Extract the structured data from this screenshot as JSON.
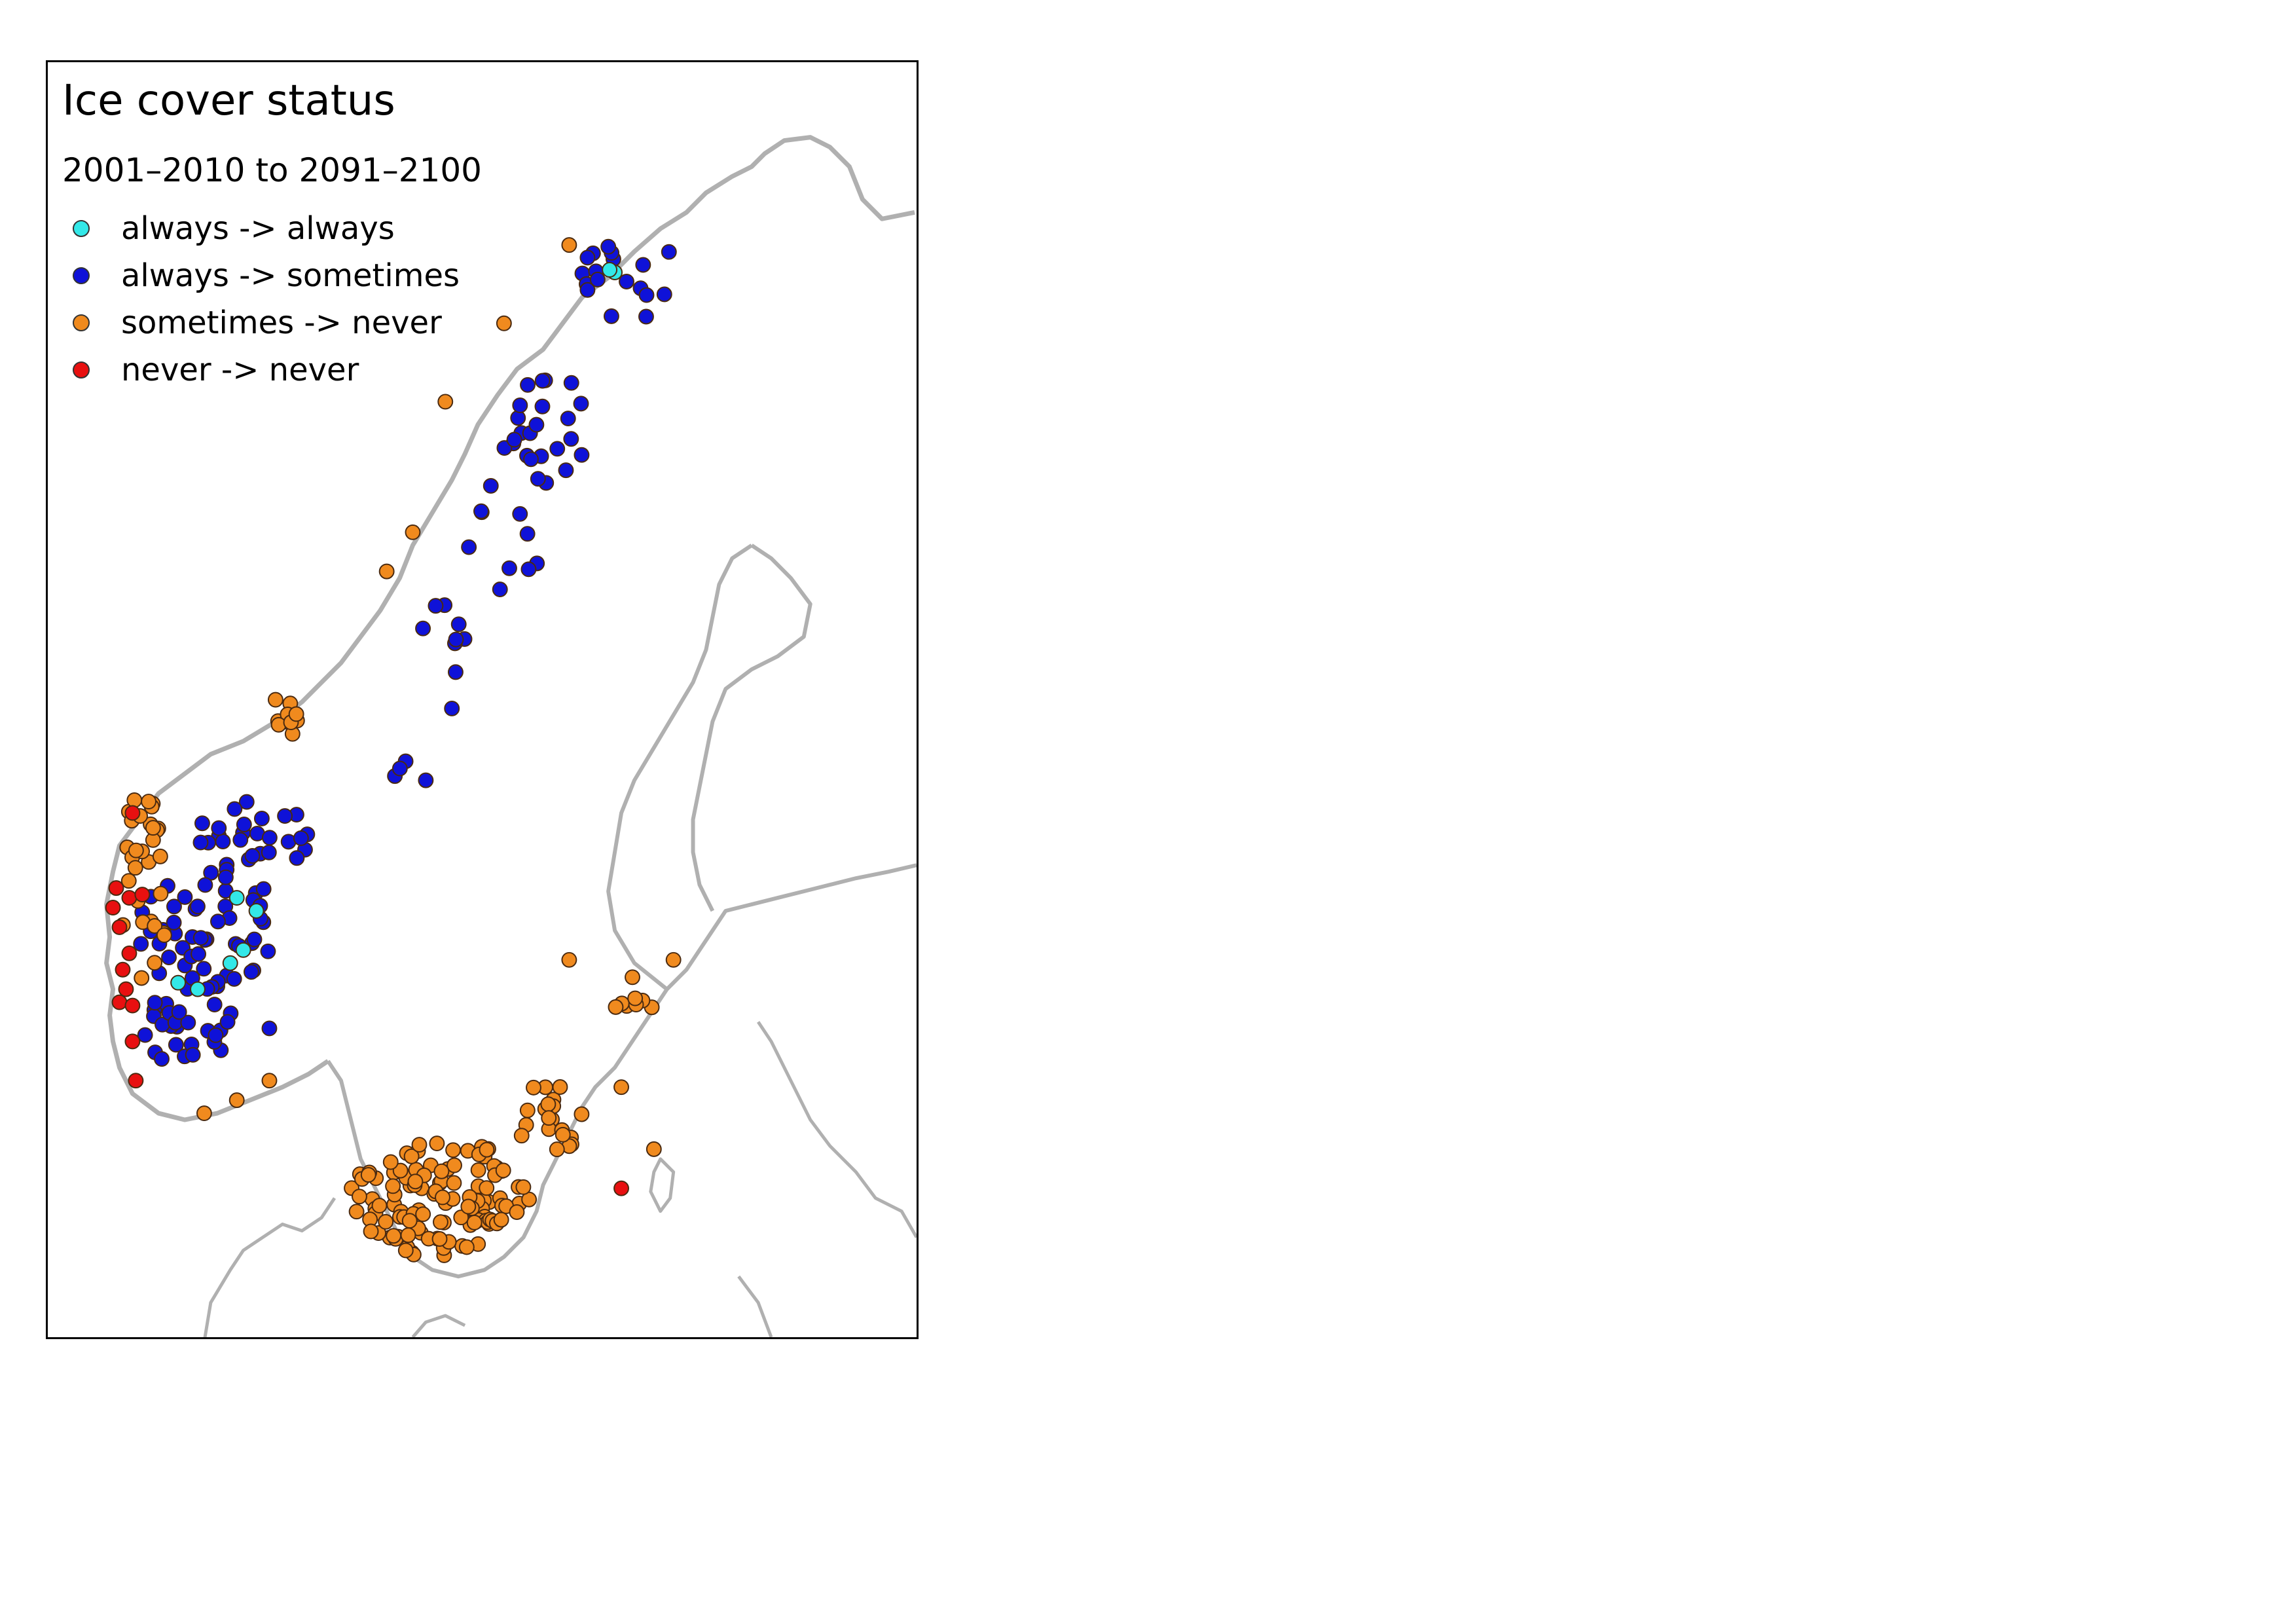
{
  "title": "Ice cover status",
  "subtitle": "2001–2010 to 2091–2100",
  "legend": [
    {
      "label": "always -> always",
      "color": "#33e8e8"
    },
    {
      "label": "always -> sometimes",
      "color": "#0f12d8"
    },
    {
      "label": "sometimes -> never",
      "color": "#f08a1e"
    },
    {
      "label": "never -> never",
      "color": "#e81010"
    }
  ],
  "coast_color": "#b0b0b0",
  "dot_outline": "#4a2a10"
}
